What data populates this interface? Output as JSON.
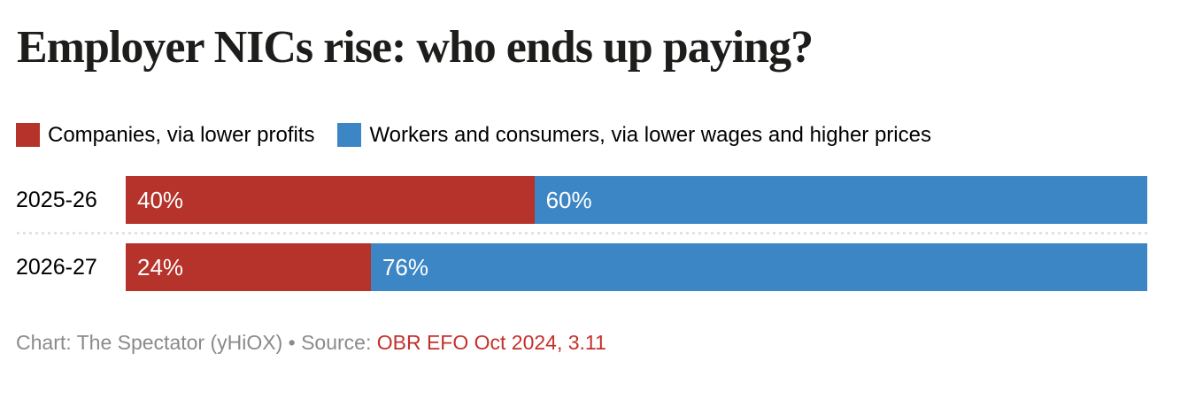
{
  "title": "Employer NICs rise: who ends up paying?",
  "colors": {
    "companies_red": "#b5332a",
    "workers_blue": "#3d86c6",
    "source_link_red": "#c4302b",
    "footer_gray": "#8a8a8a",
    "divider_gray": "#e2e2e2",
    "title_black": "#1d1d1b"
  },
  "legend": {
    "items": [
      {
        "label": "Companies, via lower profits",
        "color": "#b5332a"
      },
      {
        "label": "Workers and consumers, via lower wages and higher prices",
        "color": "#3d86c6"
      }
    ]
  },
  "chart_data": {
    "type": "bar",
    "subtype": "horizontal-stacked-100pct",
    "title": "Employer NICs rise: who ends up paying?",
    "categories": [
      "2025-26",
      "2026-27"
    ],
    "series": [
      {
        "name": "Companies, via lower profits",
        "color": "#b5332a",
        "values": [
          40,
          24
        ]
      },
      {
        "name": "Workers and consumers, via lower wages and higher prices",
        "color": "#3d86c6",
        "values": [
          60,
          76
        ]
      }
    ],
    "value_labels": {
      "row0": {
        "companies": "40%",
        "workers": "60%"
      },
      "row1": {
        "companies": "24%",
        "workers": "76%"
      }
    },
    "widths": {
      "row0": {
        "companies": 40,
        "workers": 60
      },
      "row1": {
        "companies": 24,
        "workers": 76
      }
    },
    "unit": "%",
    "xlim": [
      0,
      100
    ],
    "grid": false,
    "legend_position": "top",
    "value_label_position": "inside-start"
  },
  "footer": {
    "credit_prefix": "Chart: The Spectator (yHiOX) • Source: ",
    "source_link": "OBR EFO Oct 2024, 3.11"
  }
}
